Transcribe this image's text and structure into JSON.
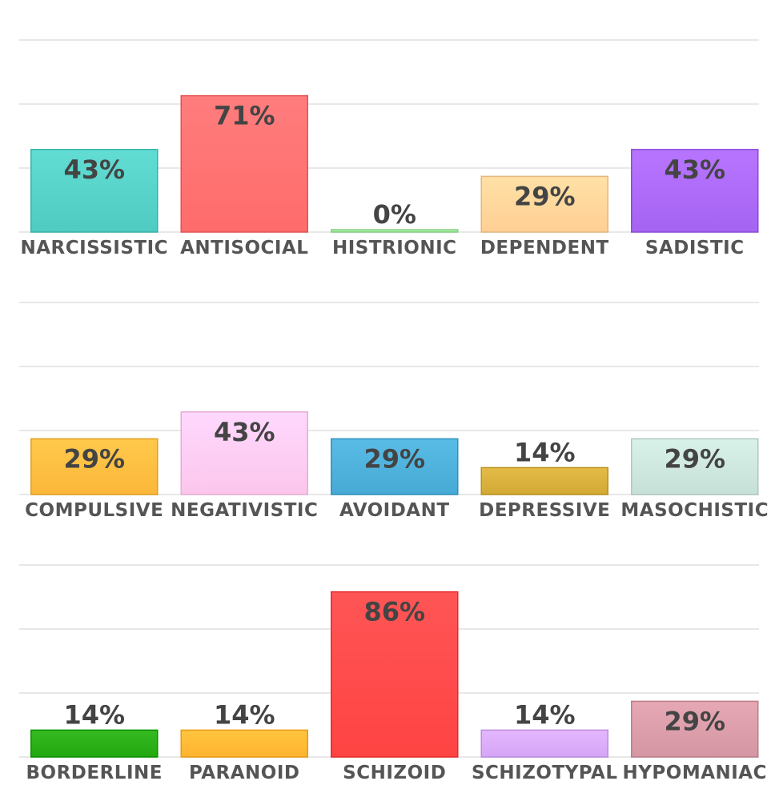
{
  "chart_data": [
    {
      "type": "bar",
      "ylim": [
        0,
        100
      ],
      "categories": [
        "NARCISSISTIC",
        "ANTISOCIAL",
        "HISTRIONIC",
        "DEPENDENT",
        "SADISTIC"
      ],
      "values": [
        43,
        71,
        0,
        29,
        43
      ],
      "labels": [
        "43%",
        "71%",
        "0%",
        "29%",
        "43%"
      ],
      "colors": [
        "#4fcbc1",
        "#ff6b6b",
        "#9ee89a",
        "#ffcf94",
        "#a563f2"
      ],
      "grid": true
    },
    {
      "type": "bar",
      "ylim": [
        0,
        100
      ],
      "categories": [
        "COMPULSIVE",
        "NEGATIVISTIC",
        "AVOIDANT",
        "DEPRESSIVE",
        "MASOCHISTIC"
      ],
      "values": [
        29,
        43,
        29,
        14,
        29
      ],
      "labels": [
        "29%",
        "43%",
        "29%",
        "14%",
        "29%"
      ],
      "colors": [
        "#fbb73a",
        "#fcc6ec",
        "#47aad4",
        "#d3a936",
        "#c7e0d7"
      ],
      "grid": true
    },
    {
      "type": "bar",
      "ylim": [
        0,
        100
      ],
      "categories": [
        "BORDERLINE",
        "PARANOID",
        "SCHIZOID",
        "SCHIZOTYPAL",
        "HYPOMANIAC"
      ],
      "values": [
        14,
        14,
        86,
        14,
        29
      ],
      "labels": [
        "14%",
        "14%",
        "86%",
        "14%",
        "29%"
      ],
      "colors": [
        "#23a810",
        "#ffb32e",
        "#ff4343",
        "#d3a5f5",
        "#d496a2"
      ],
      "grid": true
    }
  ]
}
